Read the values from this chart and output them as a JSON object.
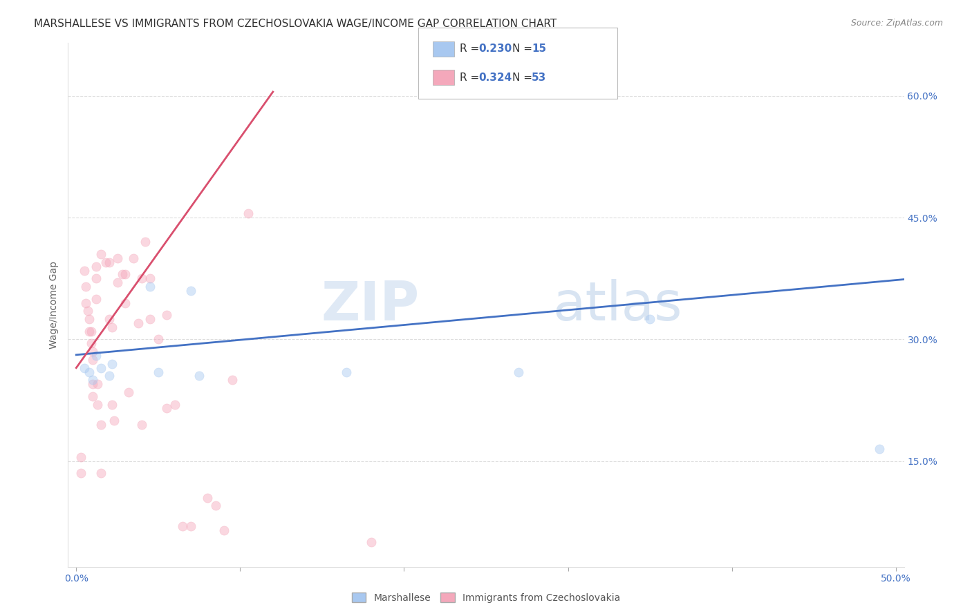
{
  "title": "MARSHALLESE VS IMMIGRANTS FROM CZECHOSLOVAKIA WAGE/INCOME GAP CORRELATION CHART",
  "source": "Source: ZipAtlas.com",
  "ylabel": "Wage/Income Gap",
  "ytick_labels": [
    "15.0%",
    "30.0%",
    "45.0%",
    "60.0%"
  ],
  "ytick_values": [
    0.15,
    0.3,
    0.45,
    0.6
  ],
  "xlim": [
    -0.005,
    0.505
  ],
  "ylim": [
    0.02,
    0.665
  ],
  "blue_R": "0.230",
  "blue_N": "15",
  "pink_R": "0.324",
  "pink_N": "53",
  "blue_color": "#A8C8F0",
  "pink_color": "#F4A8BB",
  "blue_line_color": "#4472C4",
  "pink_line_color": "#D94F6E",
  "watermark_text": "ZIP",
  "watermark_text2": "atlas",
  "legend1_label": "Marshallese",
  "legend2_label": "Immigrants from Czechoslovakia",
  "blue_x": [
    0.005,
    0.008,
    0.01,
    0.012,
    0.015,
    0.02,
    0.022,
    0.045,
    0.05,
    0.07,
    0.075,
    0.165,
    0.27,
    0.35,
    0.49
  ],
  "blue_y": [
    0.265,
    0.26,
    0.25,
    0.28,
    0.265,
    0.255,
    0.27,
    0.365,
    0.26,
    0.36,
    0.255,
    0.26,
    0.26,
    0.325,
    0.165
  ],
  "pink_x": [
    0.003,
    0.003,
    0.005,
    0.006,
    0.006,
    0.007,
    0.008,
    0.008,
    0.009,
    0.009,
    0.01,
    0.01,
    0.01,
    0.01,
    0.012,
    0.012,
    0.012,
    0.013,
    0.013,
    0.015,
    0.015,
    0.015,
    0.018,
    0.02,
    0.02,
    0.022,
    0.022,
    0.023,
    0.025,
    0.025,
    0.028,
    0.03,
    0.03,
    0.032,
    0.035,
    0.038,
    0.04,
    0.04,
    0.042,
    0.045,
    0.045,
    0.05,
    0.055,
    0.055,
    0.06,
    0.065,
    0.07,
    0.08,
    0.085,
    0.09,
    0.095,
    0.105,
    0.18
  ],
  "pink_y": [
    0.155,
    0.135,
    0.385,
    0.365,
    0.345,
    0.335,
    0.325,
    0.31,
    0.31,
    0.295,
    0.285,
    0.275,
    0.245,
    0.23,
    0.39,
    0.375,
    0.35,
    0.245,
    0.22,
    0.195,
    0.135,
    0.405,
    0.395,
    0.395,
    0.325,
    0.315,
    0.22,
    0.2,
    0.4,
    0.37,
    0.38,
    0.38,
    0.345,
    0.235,
    0.4,
    0.32,
    0.195,
    0.375,
    0.42,
    0.375,
    0.325,
    0.3,
    0.33,
    0.215,
    0.22,
    0.07,
    0.07,
    0.105,
    0.095,
    0.065,
    0.25,
    0.455,
    0.05
  ],
  "blue_trendline_x": [
    0.0,
    0.505
  ],
  "blue_trendline_y": [
    0.281,
    0.374
  ],
  "pink_trendline_x": [
    0.0,
    0.12
  ],
  "pink_trendline_y": [
    0.265,
    0.605
  ],
  "grid_color": "#DDDDDD",
  "bg_color": "#FFFFFF",
  "marker_size": 90,
  "marker_alpha": 0.45,
  "title_fontsize": 11,
  "axis_fontsize": 10,
  "tick_fontsize": 10,
  "legend_fontsize": 11
}
